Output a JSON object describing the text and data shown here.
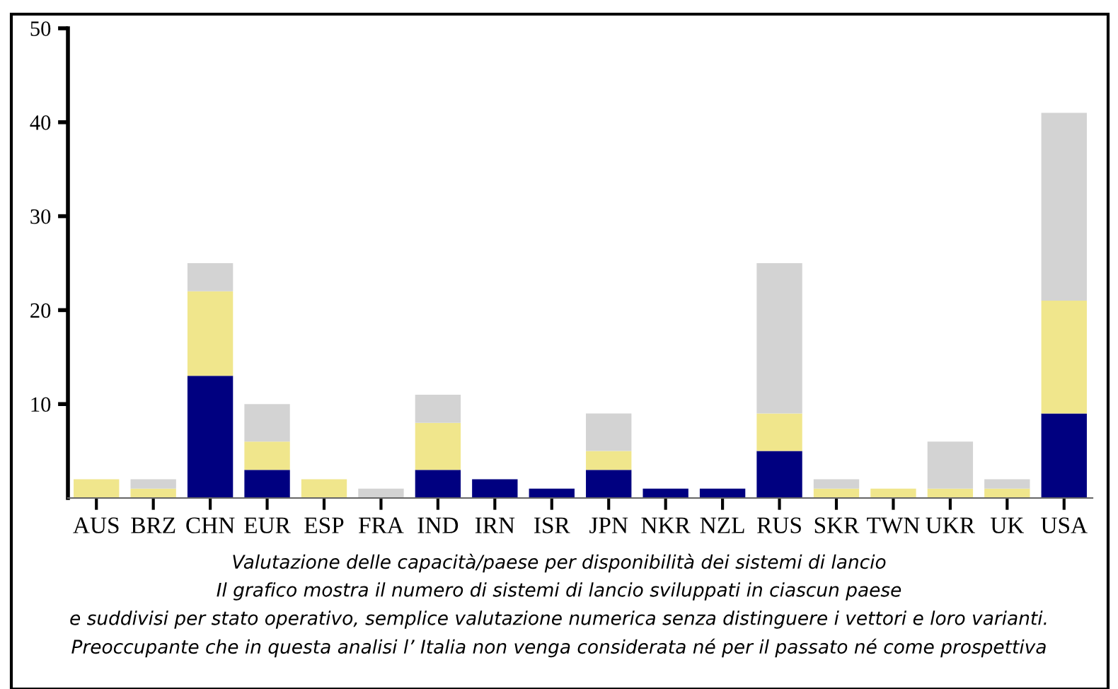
{
  "chart_data": {
    "type": "bar",
    "stacked": true,
    "categories": [
      "AUS",
      "BRZ",
      "CHN",
      "EUR",
      "ESP",
      "FRA",
      "IND",
      "IRN",
      "ISR",
      "JPN",
      "NKR",
      "NZL",
      "RUS",
      "SKR",
      "TWN",
      "UKR",
      "UK",
      "USA"
    ],
    "series": [
      {
        "color": "#000080",
        "values": [
          0,
          0,
          13,
          3,
          0,
          0,
          3,
          2,
          1,
          3,
          1,
          1,
          5,
          0,
          0,
          0,
          0,
          9
        ]
      },
      {
        "color": "#f0e68c",
        "values": [
          2,
          1,
          9,
          3,
          2,
          0,
          5,
          0,
          0,
          2,
          0,
          0,
          4,
          1,
          1,
          1,
          1,
          12
        ]
      },
      {
        "color": "#d3d3d3",
        "values": [
          0,
          1,
          3,
          4,
          0,
          1,
          3,
          0,
          0,
          4,
          0,
          0,
          16,
          1,
          0,
          5,
          1,
          20
        ]
      }
    ],
    "ylim": [
      0,
      50
    ],
    "yticks": [
      10,
      20,
      30,
      40,
      50
    ],
    "grid": false,
    "legend": false,
    "annotations": [
      "Valutazione delle capacità/paese per disponibilità dei sistemi di lancio",
      "Il grafico mostra il numero di sistemi di lancio sviluppati in ciascun paese",
      "e suddivisi per stato operativo, semplice valutazione numerica senza distinguere i vettori e loro varianti.",
      "Preoccupante che in questa analisi l’ Italia non venga considerata né per il passato né come prospettiva"
    ]
  }
}
